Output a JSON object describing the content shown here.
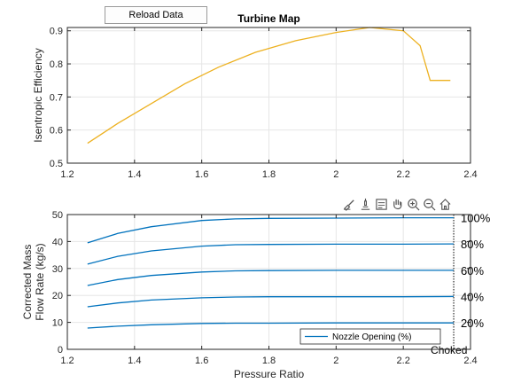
{
  "toolbar": {
    "reload_label": "Reload Data",
    "icons": [
      "brush-icon",
      "data-tips-icon",
      "export-icon",
      "pan-hand-icon",
      "zoom-in-icon",
      "zoom-out-icon",
      "home-icon"
    ]
  },
  "colors": {
    "efficiency": "#edb120",
    "flow": "#0072bd",
    "axis": "#262626",
    "grid": "#e6e6e6"
  },
  "chart_data": [
    {
      "type": "line",
      "title": "Turbine Map",
      "xlabel": "",
      "ylabel": "Isentropic Efficiency",
      "xlim": [
        1.2,
        2.4
      ],
      "ylim": [
        0.5,
        0.91
      ],
      "xticks": [
        1.2,
        1.4,
        1.6,
        1.8,
        2,
        2.2,
        2.4
      ],
      "xtick_labels": [
        "1.2",
        "1.4",
        "1.6",
        "1.8",
        "2",
        "2.2",
        "2.4"
      ],
      "yticks": [
        0.5,
        0.6,
        0.7,
        0.8,
        0.9
      ],
      "ytick_labels": [
        "0.5",
        "0.6",
        "0.7",
        "0.8",
        "0.9"
      ],
      "grid": true,
      "series": [
        {
          "color": "#edb120",
          "x": [
            1.26,
            1.35,
            1.45,
            1.55,
            1.65,
            1.76,
            1.88,
            2.0,
            2.1,
            2.2,
            2.25,
            2.28,
            2.34
          ],
          "y": [
            0.56,
            0.62,
            0.68,
            0.74,
            0.79,
            0.835,
            0.87,
            0.895,
            0.91,
            0.9,
            0.855,
            0.75,
            0.75
          ]
        }
      ]
    },
    {
      "type": "line",
      "title": "",
      "xlabel": "Pressure Ratio",
      "ylabel": [
        "Corrected Mass",
        "Flow Rate (kg/s)"
      ],
      "xlim": [
        1.2,
        2.4
      ],
      "ylim": [
        0,
        50
      ],
      "xticks": [
        1.2,
        1.4,
        1.6,
        1.8,
        2,
        2.2,
        2.4
      ],
      "xtick_labels": [
        "1.2",
        "1.4",
        "1.6",
        "1.8",
        "2",
        "2.2",
        "2.4"
      ],
      "yticks": [
        0,
        10,
        20,
        30,
        40,
        50
      ],
      "ytick_labels": [
        "0",
        "10",
        "20",
        "30",
        "40",
        "50"
      ],
      "grid": true,
      "legend": {
        "entries": [
          "Nozzle Opening (%)"
        ],
        "location": "bottom-right"
      },
      "choked_line": {
        "x": 2.35,
        "label": "Choked"
      },
      "series": [
        {
          "label": "100%",
          "color": "#0072bd",
          "x": [
            1.26,
            1.35,
            1.45,
            1.6,
            1.7,
            1.8,
            2.0,
            2.2,
            2.35
          ],
          "y": [
            39.5,
            43,
            45.5,
            47.8,
            48.4,
            48.6,
            48.7,
            48.8,
            48.8
          ]
        },
        {
          "label": "80%",
          "color": "#0072bd",
          "x": [
            1.26,
            1.35,
            1.45,
            1.6,
            1.7,
            1.8,
            2.0,
            2.2,
            2.35
          ],
          "y": [
            31.6,
            34.5,
            36.5,
            38.3,
            38.8,
            38.9,
            39.0,
            39.0,
            39.1
          ]
        },
        {
          "label": "60%",
          "color": "#0072bd",
          "x": [
            1.26,
            1.35,
            1.45,
            1.6,
            1.7,
            1.8,
            2.0,
            2.2,
            2.35
          ],
          "y": [
            23.7,
            25.9,
            27.4,
            28.7,
            29.1,
            29.2,
            29.3,
            29.3,
            29.3
          ]
        },
        {
          "label": "40%",
          "color": "#0072bd",
          "x": [
            1.26,
            1.35,
            1.45,
            1.6,
            1.7,
            1.8,
            2.0,
            2.2,
            2.35
          ],
          "y": [
            15.8,
            17.2,
            18.3,
            19.1,
            19.4,
            19.5,
            19.5,
            19.5,
            19.6
          ]
        },
        {
          "label": "20%",
          "color": "#0072bd",
          "x": [
            1.26,
            1.35,
            1.45,
            1.6,
            1.7,
            1.8,
            2.0,
            2.2,
            2.35
          ],
          "y": [
            7.9,
            8.6,
            9.1,
            9.6,
            9.7,
            9.7,
            9.8,
            9.8,
            9.8
          ]
        }
      ]
    }
  ]
}
